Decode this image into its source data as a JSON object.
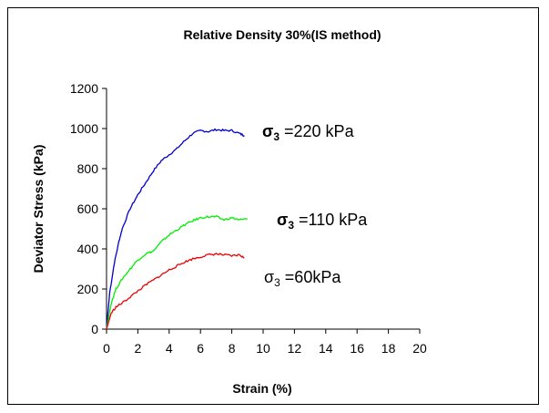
{
  "chart_data": {
    "type": "line",
    "title": "Relative Density  30%(IS method)",
    "xlabel": "Strain (%)",
    "ylabel": "Deviator Stress (kPa)",
    "xlim": [
      0,
      20
    ],
    "ylim": [
      0,
      1200
    ],
    "xticks": [
      "0",
      "2",
      "4",
      "6",
      "8",
      "10",
      "12",
      "14",
      "16",
      "18",
      "20"
    ],
    "yticks": [
      "0",
      "200",
      "400",
      "600",
      "800",
      "1000",
      "1200"
    ],
    "grid": false,
    "legend": "none",
    "series": [
      {
        "color": "#0000cc",
        "x": [
          0,
          0.2,
          0.5,
          0.8,
          1.0,
          1.5,
          2.0,
          2.5,
          3.0,
          3.5,
          4.0,
          4.5,
          5.0,
          5.5,
          6.0,
          6.5,
          7.0,
          7.5,
          8.0,
          8.5,
          8.8
        ],
        "y": [
          0,
          180,
          330,
          440,
          500,
          600,
          670,
          730,
          790,
          840,
          870,
          900,
          940,
          975,
          990,
          985,
          995,
          990,
          990,
          975,
          965
        ],
        "annotation": {
          "sigma": "σ",
          "sub": "3",
          "text": " =220 kPa",
          "bold_sigma": true
        }
      },
      {
        "color": "#00ee00",
        "x": [
          0,
          0.3,
          0.6,
          1.0,
          1.5,
          2.0,
          2.5,
          3.0,
          3.5,
          4.0,
          4.5,
          5.0,
          5.5,
          6.0,
          6.5,
          7.0,
          7.5,
          8.0,
          8.5,
          9.0
        ],
        "y": [
          0,
          130,
          200,
          250,
          300,
          345,
          375,
          390,
          435,
          470,
          495,
          520,
          540,
          555,
          560,
          560,
          545,
          555,
          545,
          550
        ],
        "annotation": {
          "sigma": "σ",
          "sub": "3",
          "text": " =110 kPa",
          "bold_sigma": true
        }
      },
      {
        "color": "#ee0000",
        "x": [
          0,
          0.3,
          0.6,
          1.0,
          1.5,
          2.0,
          2.5,
          3.0,
          3.5,
          4.0,
          4.5,
          5.0,
          5.5,
          6.0,
          6.5,
          7.0,
          7.5,
          8.0,
          8.5,
          8.8
        ],
        "y": [
          0,
          80,
          110,
          130,
          160,
          190,
          220,
          245,
          270,
          295,
          315,
          335,
          350,
          360,
          370,
          375,
          370,
          365,
          370,
          355
        ],
        "annotation": {
          "sigma": "σ",
          "sub": "3",
          "text": " =60kPa",
          "bold_sigma": false
        }
      }
    ]
  }
}
